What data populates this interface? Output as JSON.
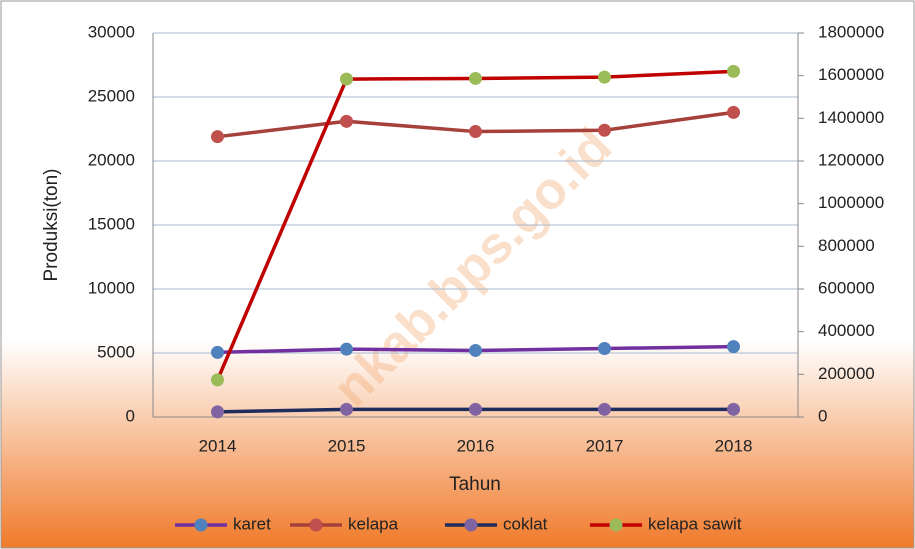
{
  "chart_data": {
    "type": "line",
    "x_label": "Tahun",
    "y_label": "Produksi(ton)",
    "watermark": "nkab.bps.go.id",
    "categories": [
      "2014",
      "2015",
      "2016",
      "2017",
      "2018"
    ],
    "ylim": [
      0,
      30000
    ],
    "yticks": [
      0,
      5000,
      10000,
      15000,
      20000,
      25000,
      30000
    ],
    "y2lim": [
      0,
      1800000
    ],
    "y2ticks": [
      0,
      200000,
      400000,
      600000,
      800000,
      1000000,
      1200000,
      1400000,
      1600000,
      1800000
    ],
    "grid": true,
    "legend": "bottom",
    "series": [
      {
        "name": "karet",
        "color": "#7030a0",
        "marker_color": "#4f81bd",
        "values": [
          5050,
          5300,
          5200,
          5350,
          5500
        ]
      },
      {
        "name": "kelapa",
        "color": "#a5403a",
        "marker_color": "#c0504d",
        "values": [
          21900,
          23100,
          22300,
          22400,
          23800
        ]
      },
      {
        "name": "coklat",
        "color": "#1f2d5c",
        "marker_color": "#8064a2",
        "values": [
          400,
          600,
          600,
          600,
          600
        ]
      },
      {
        "name": "kelapa sawit",
        "color": "#c00000",
        "marker_color": "#9bbb59",
        "axis": "y2",
        "values": [
          174000,
          1584000,
          1587000,
          1593000,
          1620000
        ]
      }
    ]
  }
}
